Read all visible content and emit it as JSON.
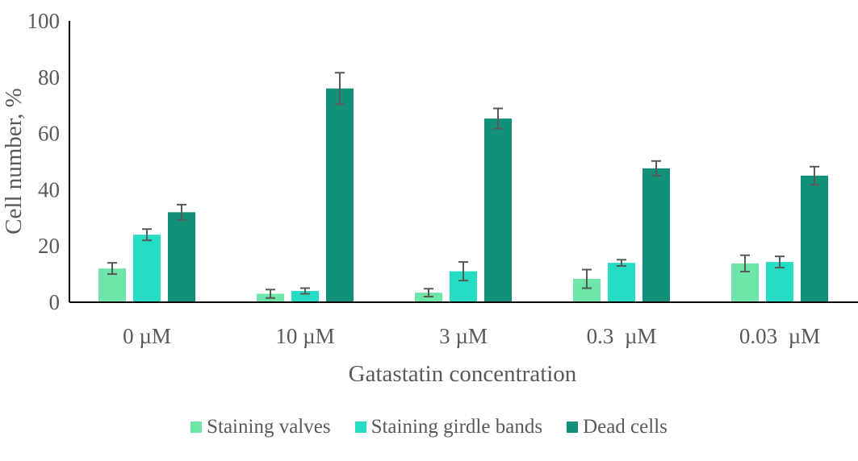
{
  "chart_data": {
    "type": "bar",
    "title": "",
    "xlabel": "Gatastatin concentration",
    "ylabel": "Cell number, %",
    "ylim": [
      0,
      100
    ],
    "yticks": [
      0,
      20,
      40,
      60,
      80,
      100
    ],
    "grid": false,
    "legend_position": "bottom",
    "categories": [
      "0 µM",
      "10 µM",
      "3 µM",
      "0.3  µM",
      "0.03  µM"
    ],
    "series": [
      {
        "name": "Staining valves",
        "color": "#6ee6a8",
        "values": [
          12,
          3,
          3.4,
          8.3,
          13.8
        ],
        "errors": [
          2,
          1.5,
          1.4,
          3.3,
          2.9
        ]
      },
      {
        "name": "Staining girdle bands",
        "color": "#27dcc4",
        "values": [
          24,
          4,
          11,
          14,
          14.3
        ],
        "errors": [
          2,
          1,
          3.3,
          1.1,
          2
        ]
      },
      {
        "name": "Dead cells",
        "color": "#12907a",
        "values": [
          32,
          76,
          65.3,
          47.6,
          45
        ],
        "errors": [
          2.7,
          5.6,
          3.6,
          2.6,
          3.2
        ]
      }
    ]
  }
}
